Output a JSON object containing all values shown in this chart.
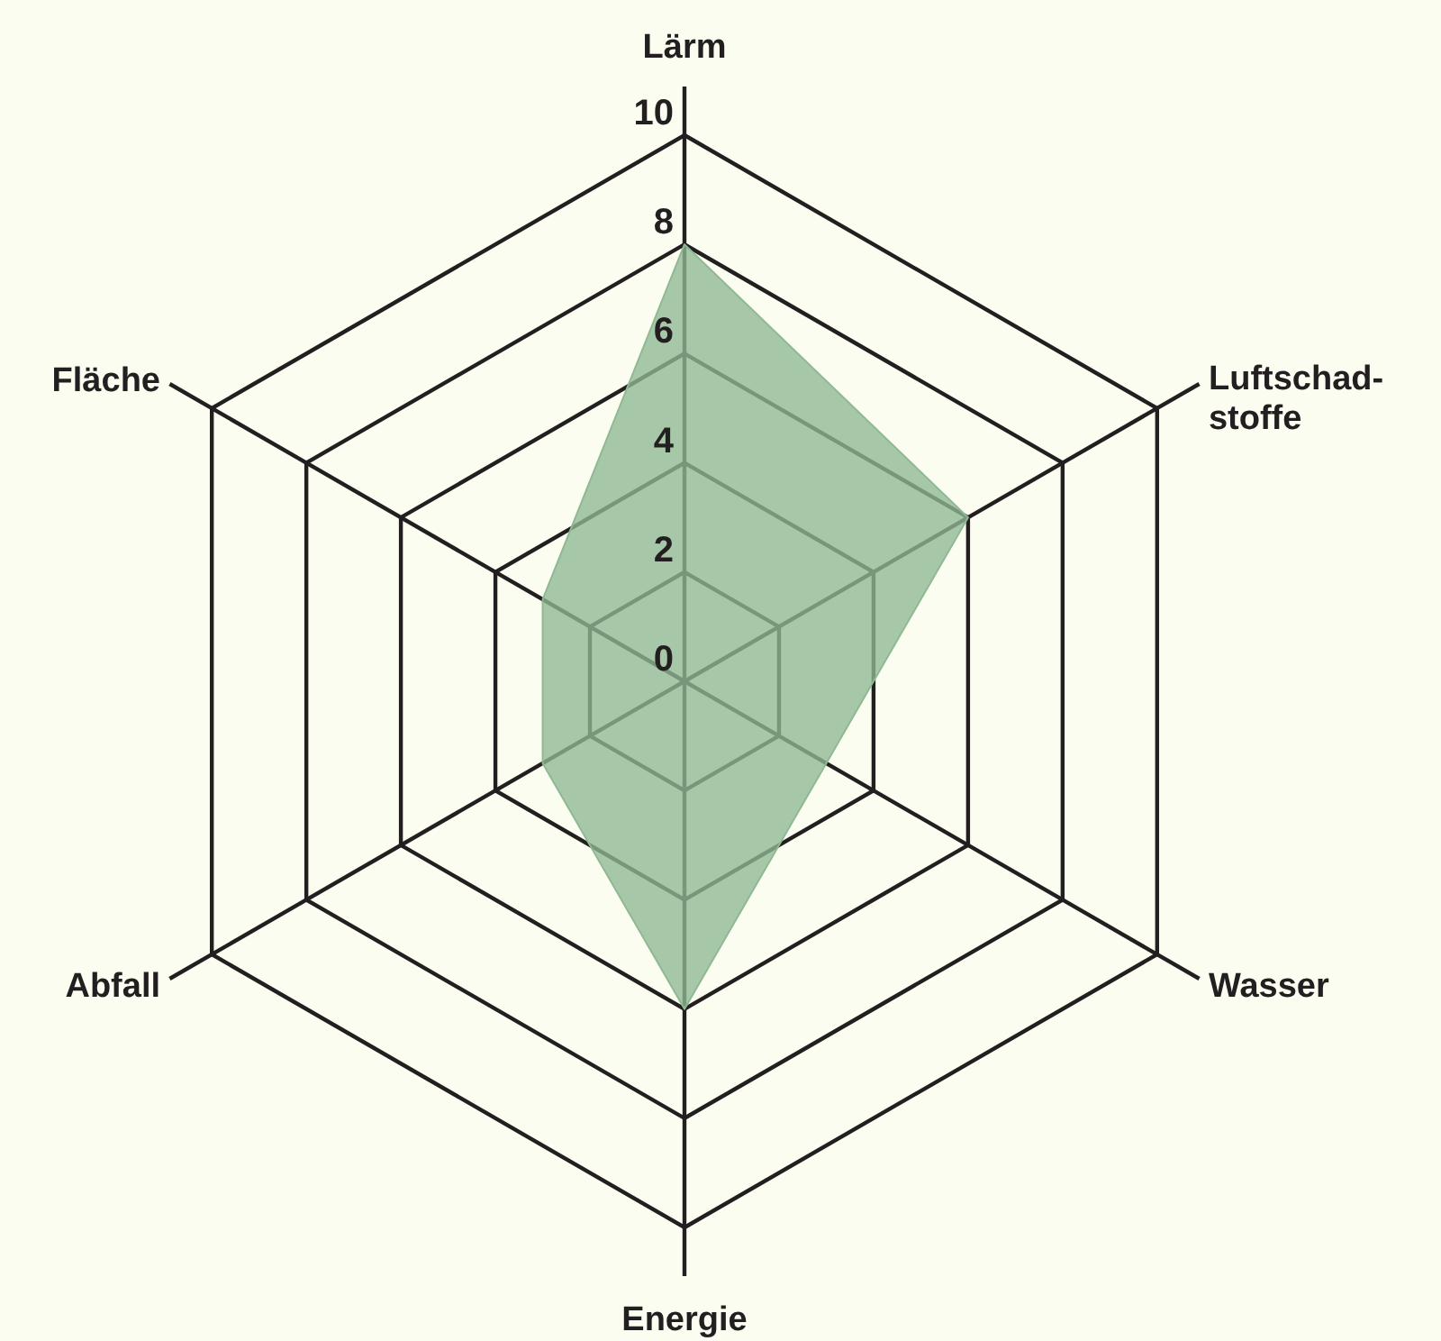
{
  "chart_data": {
    "type": "radar",
    "categories": [
      "Lärm",
      "Luftschad-stoffe",
      "Wasser",
      "Energie",
      "Abfall",
      "Fläche"
    ],
    "series": [
      {
        "color": "#8fb893",
        "values": [
          8,
          6,
          3,
          6,
          3,
          3
        ]
      }
    ],
    "ylim": [
      0,
      10
    ],
    "yticks": [
      0,
      2,
      4,
      6,
      8,
      10
    ],
    "grid": true
  }
}
